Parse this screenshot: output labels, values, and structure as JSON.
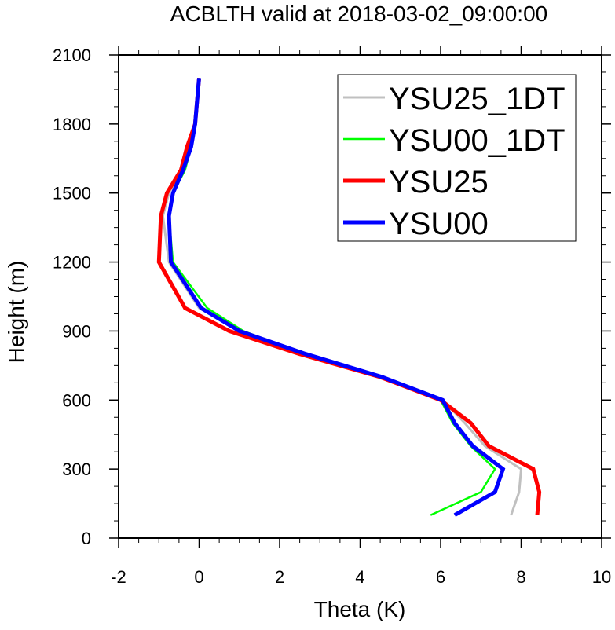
{
  "chart_data": {
    "type": "line",
    "title": "ACBLTH valid at 2018-03-02_09:00:00",
    "xlabel": "Theta (K)",
    "ylabel": "Height (m)",
    "xlim": [
      -2,
      10
    ],
    "ylim": [
      0,
      2100
    ],
    "xticks": [
      -2,
      0,
      2,
      4,
      6,
      8,
      10
    ],
    "yticks": [
      0,
      300,
      600,
      900,
      1200,
      1500,
      1800,
      2100
    ],
    "xtick_labels": [
      "-2",
      "0",
      "2",
      "4",
      "6",
      "8",
      "10"
    ],
    "ytick_labels": [
      "0",
      "300",
      "600",
      "900",
      "1200",
      "1500",
      "1800",
      "2100"
    ],
    "grid": false,
    "legend_position": "top-right",
    "series": [
      {
        "name": "YSU25_1DT",
        "color": "#c0c0c0",
        "points": [
          [
            7.75,
            100
          ],
          [
            7.95,
            200
          ],
          [
            8.0,
            300
          ],
          [
            7.1,
            400
          ],
          [
            6.6,
            500
          ],
          [
            6.05,
            600
          ],
          [
            4.6,
            700
          ],
          [
            2.7,
            800
          ],
          [
            1.0,
            900
          ],
          [
            0.0,
            1000
          ],
          [
            -0.75,
            1200
          ],
          [
            -0.9,
            1400
          ],
          [
            -0.75,
            1500
          ],
          [
            -0.45,
            1600
          ],
          [
            -0.25,
            1700
          ],
          [
            -0.1,
            1800
          ],
          [
            -0.05,
            1900
          ],
          [
            0.0,
            2000
          ]
        ]
      },
      {
        "name": "YSU00_1DT",
        "color": "#00ff00",
        "points": [
          [
            5.75,
            100
          ],
          [
            7.0,
            200
          ],
          [
            7.35,
            300
          ],
          [
            6.75,
            400
          ],
          [
            6.3,
            500
          ],
          [
            6.0,
            600
          ],
          [
            4.55,
            700
          ],
          [
            2.6,
            800
          ],
          [
            1.1,
            900
          ],
          [
            0.2,
            1000
          ],
          [
            -0.65,
            1200
          ],
          [
            -0.75,
            1400
          ],
          [
            -0.65,
            1500
          ],
          [
            -0.35,
            1600
          ],
          [
            -0.2,
            1700
          ],
          [
            -0.1,
            1800
          ],
          [
            -0.05,
            1900
          ],
          [
            0.0,
            2000
          ]
        ]
      },
      {
        "name": "YSU25",
        "color": "#ff0000",
        "points": [
          [
            8.4,
            100
          ],
          [
            8.45,
            200
          ],
          [
            8.3,
            300
          ],
          [
            7.2,
            400
          ],
          [
            6.75,
            500
          ],
          [
            6.0,
            600
          ],
          [
            4.5,
            700
          ],
          [
            2.5,
            800
          ],
          [
            0.75,
            900
          ],
          [
            -0.35,
            1000
          ],
          [
            -1.0,
            1200
          ],
          [
            -0.95,
            1400
          ],
          [
            -0.8,
            1500
          ],
          [
            -0.45,
            1600
          ],
          [
            -0.3,
            1700
          ],
          [
            -0.1,
            1800
          ],
          [
            -0.05,
            1900
          ],
          [
            0.0,
            2000
          ]
        ]
      },
      {
        "name": "YSU00",
        "color": "#0000ff",
        "points": [
          [
            6.35,
            100
          ],
          [
            7.35,
            200
          ],
          [
            7.55,
            300
          ],
          [
            6.8,
            400
          ],
          [
            6.35,
            500
          ],
          [
            6.05,
            600
          ],
          [
            4.55,
            700
          ],
          [
            2.65,
            800
          ],
          [
            1.0,
            900
          ],
          [
            0.05,
            1000
          ],
          [
            -0.7,
            1200
          ],
          [
            -0.75,
            1400
          ],
          [
            -0.65,
            1500
          ],
          [
            -0.4,
            1600
          ],
          [
            -0.2,
            1700
          ],
          [
            -0.1,
            1800
          ],
          [
            -0.05,
            1900
          ],
          [
            0.0,
            2000
          ]
        ]
      }
    ]
  }
}
